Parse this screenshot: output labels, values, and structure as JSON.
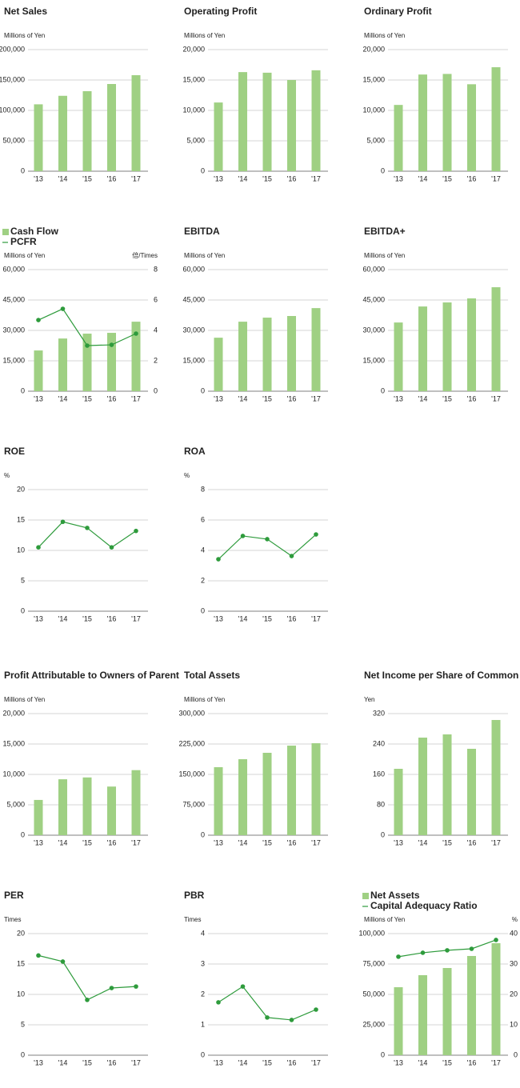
{
  "chart_data": [
    {
      "type": "bar",
      "title": "Net Sales",
      "y_label": "Millions of Yen",
      "categories": [
        "'13",
        "'14",
        "'15",
        "'16",
        "'17"
      ],
      "values": [
        110000,
        124000,
        131600,
        143400,
        157900
      ],
      "color": "#9fd083",
      "ylim": [
        0,
        200000
      ],
      "yticks": [
        0,
        {
          "value": 50000,
          "label": "50,000"
        },
        {
          "value": 100000,
          "label": "100,000"
        },
        {
          "value": 150000,
          "label": "150,000"
        },
        {
          "value": 200000,
          "label": "200,000"
        }
      ],
      "grid": true
    },
    {
      "type": "bar",
      "title": "Operating Profit",
      "y_label": "Millions of Yen",
      "categories": [
        "'13",
        "'14",
        "'15",
        "'16",
        "'17"
      ],
      "values": [
        11300,
        16300,
        16200,
        15000,
        16600
      ],
      "color": "#9fd083",
      "ylim": [
        0,
        20000
      ],
      "yticks": [
        0,
        {
          "value": 5000,
          "label": "5,000"
        },
        {
          "value": 10000,
          "label": "10,000"
        },
        {
          "value": 15000,
          "label": "15,000"
        },
        {
          "value": 20000,
          "label": "20,000"
        }
      ],
      "grid": true
    },
    {
      "type": "bar",
      "title": "Ordinary Profit",
      "y_label": "Millions of Yen",
      "categories": [
        "'13",
        "'14",
        "'15",
        "'16",
        "'17"
      ],
      "values": [
        10900,
        15900,
        16000,
        14300,
        17100
      ],
      "color": "#9fd083",
      "ylim": [
        0,
        20000
      ],
      "yticks": [
        0,
        {
          "value": 5000,
          "label": "5,000"
        },
        {
          "value": 10000,
          "label": "10,000"
        },
        {
          "value": 15000,
          "label": "15,000"
        },
        {
          "value": 20000,
          "label": "20,000"
        }
      ],
      "grid": true
    },
    {
      "type": "combo",
      "y_label": "Millions of Yen",
      "y2_label": "倍/Times",
      "categories": [
        "'13",
        "'14",
        "'15",
        "'16",
        "'17"
      ],
      "series": [
        {
          "name": "Cash Flow",
          "type": "bar",
          "color": "#9fd083",
          "values": [
            20100,
            26000,
            28400,
            28800,
            34300
          ]
        },
        {
          "name": "PCFR",
          "type": "line",
          "axis": "y2",
          "color": "#2e9b3c",
          "values": [
            4.68,
            5.42,
            3.0,
            3.05,
            3.79
          ]
        }
      ],
      "ylim": [
        0,
        60000
      ],
      "yticks": [
        0,
        {
          "value": 15000,
          "label": "15,000"
        },
        {
          "value": 30000,
          "label": "30,000"
        },
        {
          "value": 45000,
          "label": "45,000"
        },
        {
          "value": 60000,
          "label": "60,000"
        }
      ],
      "y2lim": [
        0,
        8
      ],
      "y2ticks": [
        0,
        2,
        4,
        6,
        8
      ],
      "grid": true
    },
    {
      "type": "bar",
      "title": "EBITDA",
      "y_label": "Millions of Yen",
      "categories": [
        "'13",
        "'14",
        "'15",
        "'16",
        "'17"
      ],
      "values": [
        26400,
        34300,
        36300,
        37100,
        41000
      ],
      "color": "#9fd083",
      "ylim": [
        0,
        60000
      ],
      "yticks": [
        0,
        {
          "value": 15000,
          "label": "15,000"
        },
        {
          "value": 30000,
          "label": "30,000"
        },
        {
          "value": 45000,
          "label": "45,000"
        },
        {
          "value": 60000,
          "label": "60,000"
        }
      ],
      "grid": true
    },
    {
      "type": "bar",
      "title": "EBITDA+",
      "y_label": "Millions of Yen",
      "categories": [
        "'13",
        "'14",
        "'15",
        "'16",
        "'17"
      ],
      "values": [
        33900,
        41800,
        43800,
        45800,
        51300
      ],
      "color": "#9fd083",
      "ylim": [
        0,
        60000
      ],
      "yticks": [
        0,
        {
          "value": 15000,
          "label": "15,000"
        },
        {
          "value": 30000,
          "label": "30,000"
        },
        {
          "value": 45000,
          "label": "45,000"
        },
        {
          "value": 60000,
          "label": "60,000"
        }
      ],
      "grid": true
    },
    {
      "type": "line",
      "title": "ROE",
      "y_label": "%",
      "categories": [
        "'13",
        "'14",
        "'15",
        "'16",
        "'17"
      ],
      "values": [
        10.5,
        14.7,
        13.7,
        10.5,
        13.2
      ],
      "color": "#2e9b3c",
      "ylim": [
        0,
        20
      ],
      "yticks": [
        0,
        5,
        10,
        15,
        20
      ],
      "grid": true
    },
    {
      "type": "line",
      "title": "ROA",
      "y_label": "%",
      "categories": [
        "'13",
        "'14",
        "'15",
        "'16",
        "'17"
      ],
      "values": [
        3.42,
        4.95,
        4.74,
        3.63,
        5.05
      ],
      "color": "#2e9b3c",
      "ylim": [
        0,
        8
      ],
      "yticks": [
        0,
        2,
        4,
        6,
        8
      ],
      "grid": true
    },
    {
      "type": "bar",
      "title": "Profit Attributable to Owners of Parent",
      "y_label": "Millions of Yen",
      "categories": [
        "'13",
        "'14",
        "'15",
        "'16",
        "'17"
      ],
      "values": [
        5800,
        9200,
        9500,
        8000,
        10700
      ],
      "color": "#9fd083",
      "ylim": [
        0,
        20000
      ],
      "yticks": [
        0,
        {
          "value": 5000,
          "label": "5,000"
        },
        {
          "value": 10000,
          "label": "10,000"
        },
        {
          "value": 15000,
          "label": "15,000"
        },
        {
          "value": 20000,
          "label": "20,000"
        }
      ],
      "grid": true
    },
    {
      "type": "bar",
      "title": "Total Assets",
      "y_label": "Millions of Yen",
      "categories": [
        "'13",
        "'14",
        "'15",
        "'16",
        "'17"
      ],
      "values": [
        167800,
        187500,
        203300,
        221000,
        226900
      ],
      "color": "#9fd083",
      "ylim": [
        0,
        300000
      ],
      "yticks": [
        0,
        {
          "value": 75000,
          "label": "75,000"
        },
        {
          "value": 150000,
          "label": "150,000"
        },
        {
          "value": 225000,
          "label": "225,000"
        },
        {
          "value": 300000,
          "label": "300,000"
        }
      ],
      "grid": true
    },
    {
      "type": "bar",
      "title": "Net Income per Share of Common Stock",
      "y_label": "Yen",
      "categories": [
        "'13",
        "'14",
        "'15",
        "'16",
        "'17"
      ],
      "values": [
        174.7,
        256.8,
        265.3,
        227.4,
        303.2
      ],
      "color": "#9fd083",
      "ylim": [
        0,
        320
      ],
      "yticks": [
        0,
        80,
        160,
        240,
        320
      ],
      "grid": true
    },
    {
      "type": "line",
      "title": "PER",
      "y_label": "Times",
      "categories": [
        "'13",
        "'14",
        "'15",
        "'16",
        "'17"
      ],
      "values": [
        16.4,
        15.4,
        9.1,
        11.05,
        11.3
      ],
      "color": "#2e9b3c",
      "ylim": [
        0,
        20
      ],
      "yticks": [
        0,
        5,
        10,
        15,
        20
      ],
      "grid": true
    },
    {
      "type": "line",
      "title": "PBR",
      "y_label": "Times",
      "categories": [
        "'13",
        "'14",
        "'15",
        "'16",
        "'17"
      ],
      "values": [
        1.74,
        2.26,
        1.24,
        1.16,
        1.5
      ],
      "color": "#2e9b3c",
      "ylim": [
        0,
        4
      ],
      "yticks": [
        0,
        1,
        2,
        3,
        4
      ],
      "grid": true
    },
    {
      "type": "combo",
      "y_label": "Millions of Yen",
      "y2_label": "%",
      "categories": [
        "'13",
        "'14",
        "'15",
        "'16",
        "'17"
      ],
      "series": [
        {
          "name": "Net Assets",
          "type": "bar",
          "color": "#9fd083",
          "values": [
            55900,
            65800,
            71700,
            81600,
            92100
          ]
        },
        {
          "name": "Capital Adequacy Ratio",
          "type": "line",
          "axis": "y2",
          "color": "#2e9b3c",
          "values": [
            32.4,
            33.7,
            34.5,
            35.0,
            37.9
          ]
        }
      ],
      "ylim": [
        0,
        100000
      ],
      "yticks": [
        0,
        {
          "value": 25000,
          "label": "25,000"
        },
        {
          "value": 50000,
          "label": "50,000"
        },
        {
          "value": 75000,
          "label": "75,000"
        },
        {
          "value": 100000,
          "label": "100,000"
        }
      ],
      "y2lim": [
        0,
        40
      ],
      "y2ticks": [
        0,
        10,
        20,
        30,
        40
      ],
      "grid": true
    }
  ]
}
